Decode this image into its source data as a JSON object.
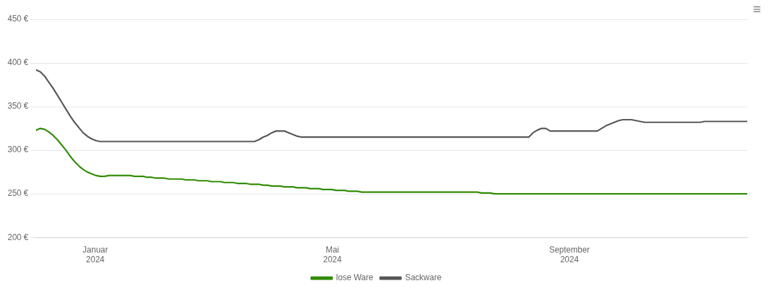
{
  "chart_data": {
    "type": "line",
    "annotations": [
      {
        "text": "≡"
      }
    ],
    "xlim": [
      0,
      12
    ],
    "xticks": [
      {
        "value": 1,
        "label": "Januar\n2024"
      },
      {
        "value": 5,
        "label": "Mai\n2024"
      },
      {
        "value": 9,
        "label": "September\n2024"
      }
    ],
    "ylim": [
      200,
      450
    ],
    "yticks": [
      {
        "value": 200,
        "label": "200 €"
      },
      {
        "value": 250,
        "label": "250 €"
      },
      {
        "value": 300,
        "label": "300 €"
      },
      {
        "value": 350,
        "label": "350 €"
      },
      {
        "value": 400,
        "label": "400 €"
      },
      {
        "value": 450,
        "label": "450 €"
      }
    ],
    "grid": "y",
    "legend": "bottom",
    "series": [
      {
        "name": "lose Ware",
        "color": "#2e8b00",
        "values": [
          323,
          325,
          324,
          321,
          317,
          312,
          306,
          300,
          293,
          287,
          282,
          278,
          275,
          273,
          271,
          270,
          270,
          271,
          271,
          271,
          271,
          271,
          271,
          270,
          270,
          270,
          269,
          269,
          268,
          268,
          268,
          267,
          267,
          267,
          267,
          266,
          266,
          266,
          265,
          265,
          265,
          264,
          264,
          264,
          263,
          263,
          263,
          262,
          262,
          262,
          261,
          261,
          261,
          260,
          260,
          259,
          259,
          259,
          258,
          258,
          258,
          257,
          257,
          257,
          256,
          256,
          256,
          255,
          255,
          255,
          254,
          254,
          254,
          253,
          253,
          253,
          252,
          252,
          252,
          252,
          252,
          252,
          252,
          252,
          252,
          252,
          252,
          252,
          252,
          252,
          252,
          252,
          252,
          252,
          252,
          252,
          252,
          252,
          252,
          252,
          252,
          252,
          252,
          252,
          251,
          251,
          251,
          250,
          250,
          250,
          250,
          250,
          250,
          250,
          250,
          250,
          250,
          250,
          250,
          250,
          250,
          250,
          250,
          250,
          250,
          250,
          250,
          250,
          250,
          250,
          250,
          250,
          250,
          250,
          250,
          250,
          250,
          250,
          250,
          250,
          250,
          250,
          250,
          250,
          250,
          250,
          250,
          250,
          250,
          250,
          250,
          250,
          250,
          250,
          250,
          250,
          250,
          250,
          250,
          250,
          250,
          250,
          250,
          250,
          250,
          250,
          250
        ]
      },
      {
        "name": "Sackware",
        "color": "#555555",
        "values": [
          392,
          390,
          385,
          378,
          371,
          363,
          355,
          347,
          339,
          332,
          326,
          320,
          316,
          313,
          311,
          310,
          310,
          310,
          310,
          310,
          310,
          310,
          310,
          310,
          310,
          310,
          310,
          310,
          310,
          310,
          310,
          310,
          310,
          310,
          310,
          310,
          310,
          310,
          310,
          310,
          310,
          310,
          310,
          310,
          310,
          310,
          310,
          310,
          310,
          310,
          310,
          310,
          312,
          315,
          317,
          320,
          322,
          322,
          322,
          320,
          318,
          316,
          315,
          315,
          315,
          315,
          315,
          315,
          315,
          315,
          315,
          315,
          315,
          315,
          315,
          315,
          315,
          315,
          315,
          315,
          315,
          315,
          315,
          315,
          315,
          315,
          315,
          315,
          315,
          315,
          315,
          315,
          315,
          315,
          315,
          315,
          315,
          315,
          315,
          315,
          315,
          315,
          315,
          315,
          315,
          315,
          315,
          315,
          315,
          315,
          315,
          315,
          315,
          315,
          315,
          315,
          320,
          323,
          325,
          325,
          322,
          322,
          322,
          322,
          322,
          322,
          322,
          322,
          322,
          322,
          322,
          322,
          325,
          328,
          330,
          332,
          334,
          335,
          335,
          335,
          334,
          333,
          332,
          332,
          332,
          332,
          332,
          332,
          332,
          332,
          332,
          332,
          332,
          332,
          332,
          332,
          333,
          333,
          333,
          333,
          333,
          333,
          333,
          333,
          333,
          333,
          333
        ]
      }
    ]
  }
}
